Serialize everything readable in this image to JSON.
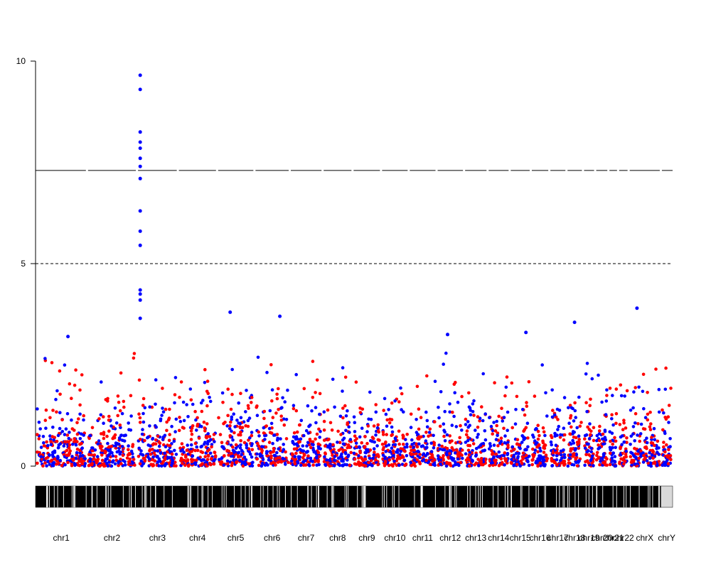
{
  "chart_data": {
    "type": "scatter",
    "subtype": "manhattan",
    "title": "",
    "xlabel": "",
    "ylabel": "",
    "ylim": [
      0,
      10
    ],
    "y_ticks": [
      "0",
      "5",
      "10"
    ],
    "genome_wide_line": 7.3,
    "suggestive_line": 5,
    "colors": {
      "odd_chromosomes": "#0000ff",
      "even_chromosomes": "#ff0000",
      "track": "#000000",
      "chrY_track": "#d9d9d9"
    },
    "chromosomes": [
      "chr1",
      "chr2",
      "chr3",
      "chr4",
      "chr5",
      "chr6",
      "chr7",
      "chr8",
      "chr9",
      "chr10",
      "chr11",
      "chr12",
      "chr13",
      "chr14",
      "chr15",
      "chr16",
      "chr17",
      "chr18",
      "chr19",
      "chr20",
      "chr21",
      "chr22",
      "chrX",
      "chrY"
    ],
    "chromosome_relative_sizes": [
      249,
      242,
      198,
      190,
      181,
      171,
      159,
      145,
      138,
      134,
      135,
      133,
      114,
      107,
      102,
      90,
      83,
      80,
      59,
      64,
      47,
      51,
      156,
      57
    ],
    "notable_points": [
      {
        "chr": "chr3",
        "y": 9.65
      },
      {
        "chr": "chr3",
        "y": 9.3
      },
      {
        "chr": "chr3",
        "y": 8.25
      },
      {
        "chr": "chr3",
        "y": 8.0
      },
      {
        "chr": "chr3",
        "y": 7.85
      },
      {
        "chr": "chr3",
        "y": 7.6
      },
      {
        "chr": "chr3",
        "y": 7.4
      },
      {
        "chr": "chr3",
        "y": 7.1
      },
      {
        "chr": "chr3",
        "y": 6.3
      },
      {
        "chr": "chr3",
        "y": 5.8
      },
      {
        "chr": "chr3",
        "y": 5.45
      },
      {
        "chr": "chr3",
        "y": 4.35
      },
      {
        "chr": "chr3",
        "y": 4.25
      },
      {
        "chr": "chr3",
        "y": 4.1
      },
      {
        "chr": "chr3",
        "y": 3.65
      },
      {
        "chr": "chr5",
        "y": 3.8
      },
      {
        "chr": "chr6",
        "y": 3.7
      },
      {
        "chr": "chr18",
        "y": 3.55
      },
      {
        "chr": "chrX",
        "y": 3.9
      },
      {
        "chr": "chr1",
        "y": 3.2
      },
      {
        "chr": "chr12",
        "y": 3.25
      },
      {
        "chr": "chr15",
        "y": 3.3
      }
    ]
  }
}
